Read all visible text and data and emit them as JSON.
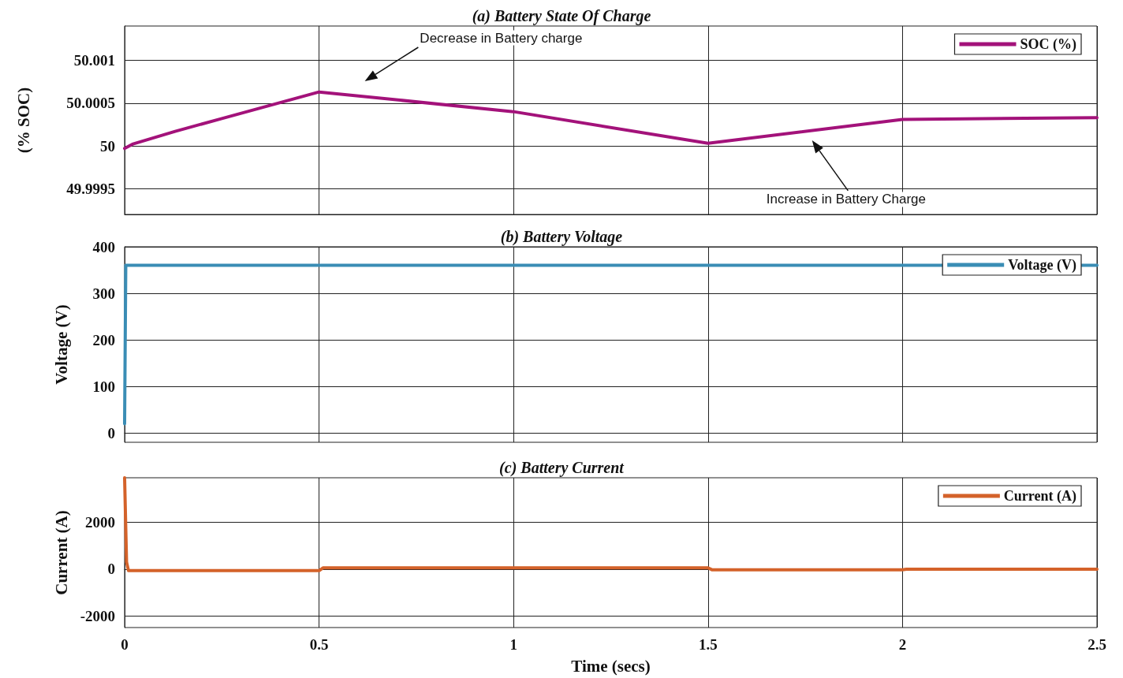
{
  "chart_data": [
    {
      "type": "line",
      "title": "(a) Battery State Of Charge",
      "ylabel": "(% SOC)",
      "xlim": [
        0,
        2.5
      ],
      "xticks": [
        0,
        0.5,
        1,
        1.5,
        2,
        2.5
      ],
      "ylim": [
        49.9992,
        50.0014
      ],
      "yticks": [
        49.9995,
        50,
        50.0005,
        50.001
      ],
      "grid": true,
      "legend": "top right",
      "tick_labels": "y",
      "marker": "none",
      "series": [
        {
          "name": "SOC (%)",
          "color": "#a3127a",
          "x": [
            0,
            0.02,
            0.13,
            0.25,
            0.5,
            1.0,
            1.5,
            2.0,
            2.5
          ],
          "values": [
            49.99997,
            50.00002,
            50.00017,
            50.00032,
            50.00063,
            50.0004,
            50.00003,
            50.00031,
            50.00033
          ]
        }
      ],
      "annotations": [
        "Decrease in Battery charge",
        "Increase in Battery Charge"
      ]
    },
    {
      "type": "line",
      "title": "(b) Battery Voltage",
      "ylabel": "Voltage (V)",
      "xlim": [
        0,
        2.5
      ],
      "xticks": [
        0,
        0.5,
        1,
        1.5,
        2,
        2.5
      ],
      "ylim": [
        -20,
        400
      ],
      "yticks": [
        0,
        100,
        200,
        300,
        400
      ],
      "grid": true,
      "legend": "top right",
      "tick_labels": "y",
      "marker": "none",
      "series": [
        {
          "name": "Voltage (V)",
          "color": "#3a8db5",
          "x": [
            0,
            0.003,
            0.5,
            1.0,
            1.5,
            2.0,
            2.5
          ],
          "values": [
            20,
            360,
            360,
            360,
            360,
            360,
            360
          ]
        }
      ]
    },
    {
      "type": "line",
      "title": "(c) Battery Current",
      "ylabel": "Current (A)",
      "xlabel": "Time (secs)",
      "xlim": [
        0,
        2.5
      ],
      "xticks": [
        0,
        0.5,
        1,
        1.5,
        2,
        2.5
      ],
      "ylim": [
        -2500,
        3900
      ],
      "yticks": [
        -2000,
        0,
        2000
      ],
      "grid": true,
      "legend": "top right",
      "marker": "none",
      "series": [
        {
          "name": "Current (A)",
          "color": "#d4622a",
          "x": [
            0,
            0.005,
            0.01,
            0.5,
            0.51,
            1.0,
            1.5,
            1.51,
            2.0,
            2.01,
            2.5
          ],
          "values": [
            3900,
            300,
            -70,
            -70,
            50,
            50,
            50,
            -30,
            -30,
            -10,
            -10
          ]
        }
      ]
    }
  ]
}
